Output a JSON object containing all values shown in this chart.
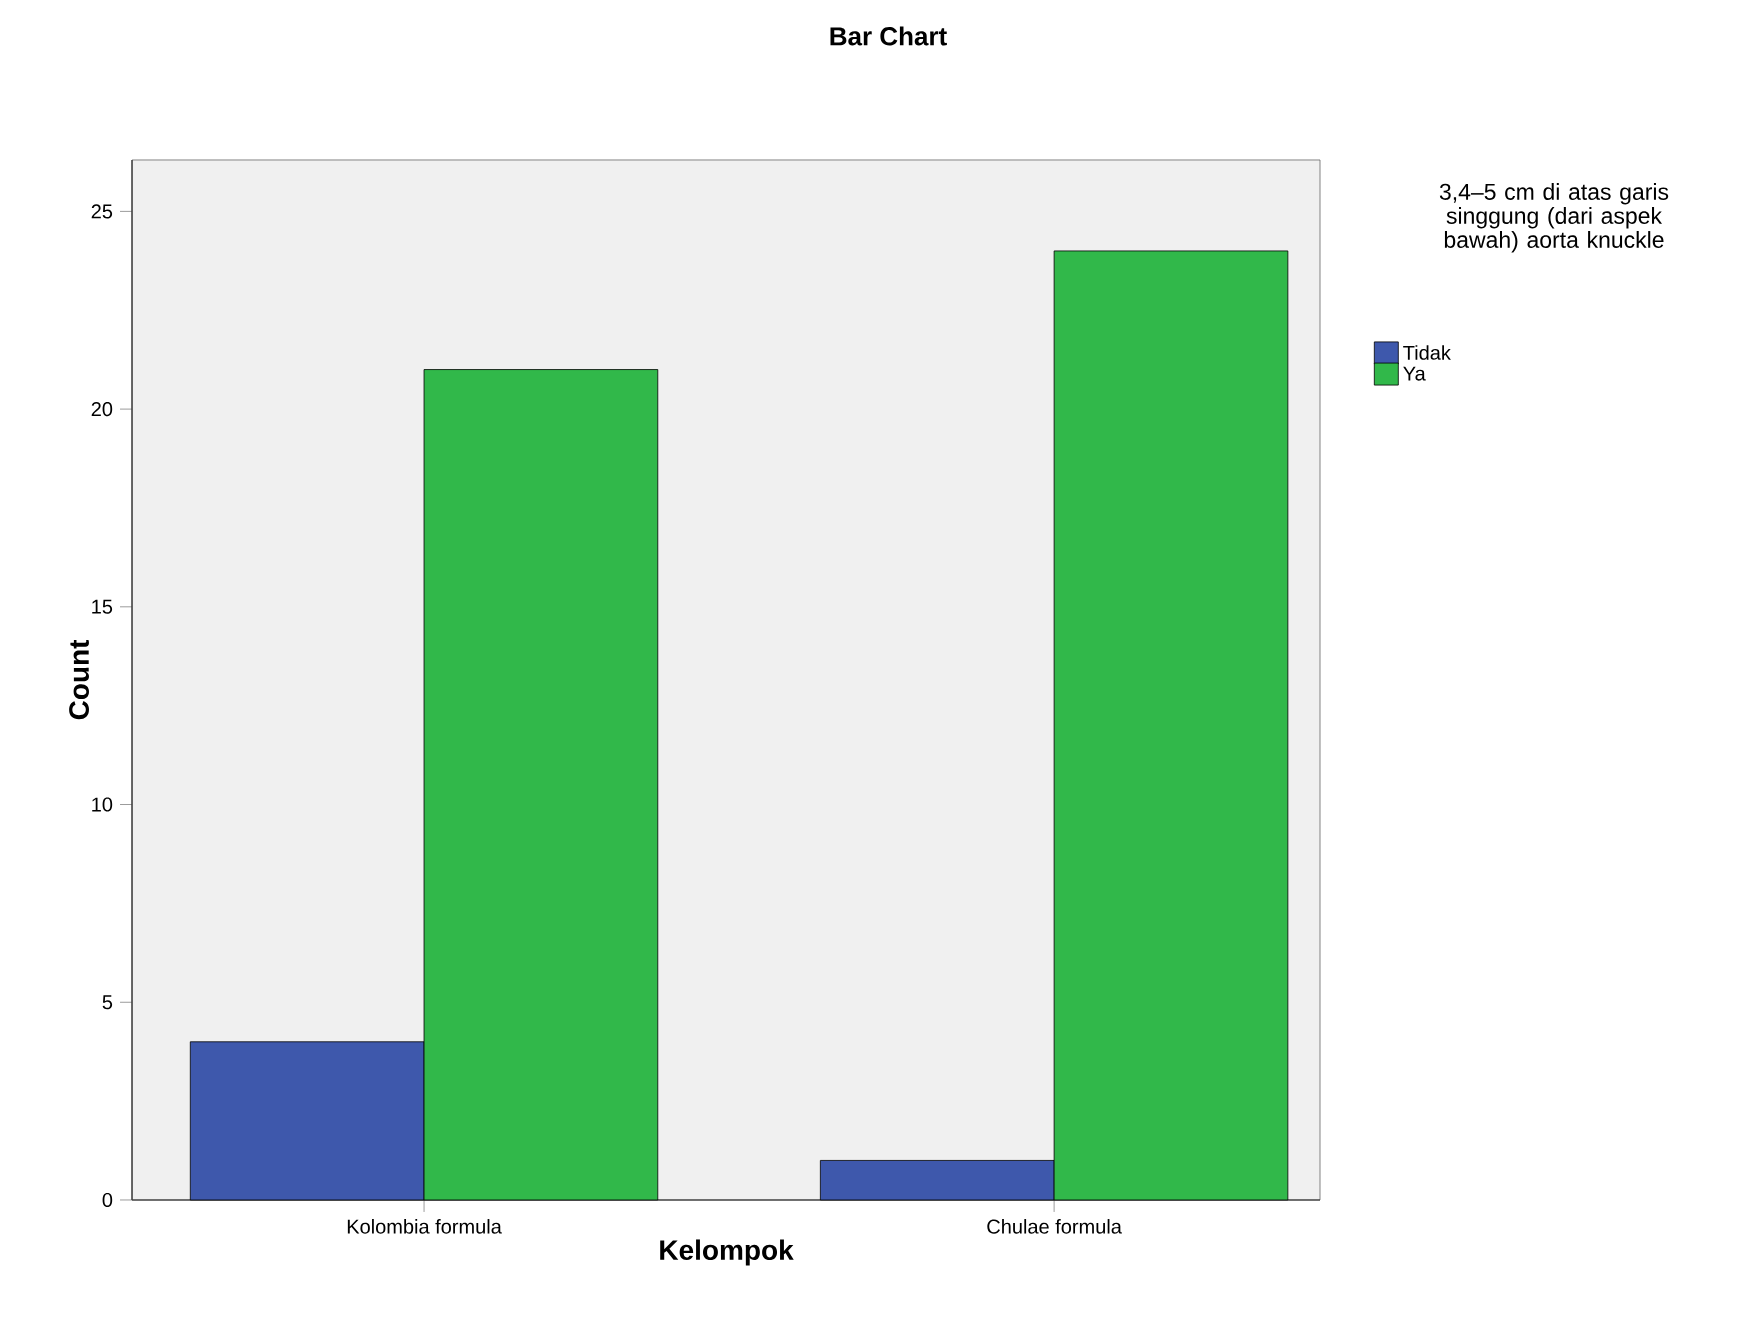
{
  "chart_data": {
    "type": "bar",
    "title": "Bar Chart",
    "xlabel": "Kelompok",
    "ylabel": "Count",
    "legend_title": "3,4–5 cm di atas garis singgung (dari aspek bawah) aorta knuckle",
    "categories": [
      "Kolombia formula",
      "Chulae formula"
    ],
    "series": [
      {
        "name": "Tidak",
        "color": "#3e58ac",
        "values": [
          4,
          1
        ]
      },
      {
        "name": "Ya",
        "color": "#31b84a",
        "values": [
          21,
          24
        ]
      }
    ],
    "ylim": [
      0,
      26.3
    ],
    "yticks": [
      0,
      5,
      10,
      15,
      20,
      25
    ],
    "grid": false,
    "legend": "right"
  }
}
